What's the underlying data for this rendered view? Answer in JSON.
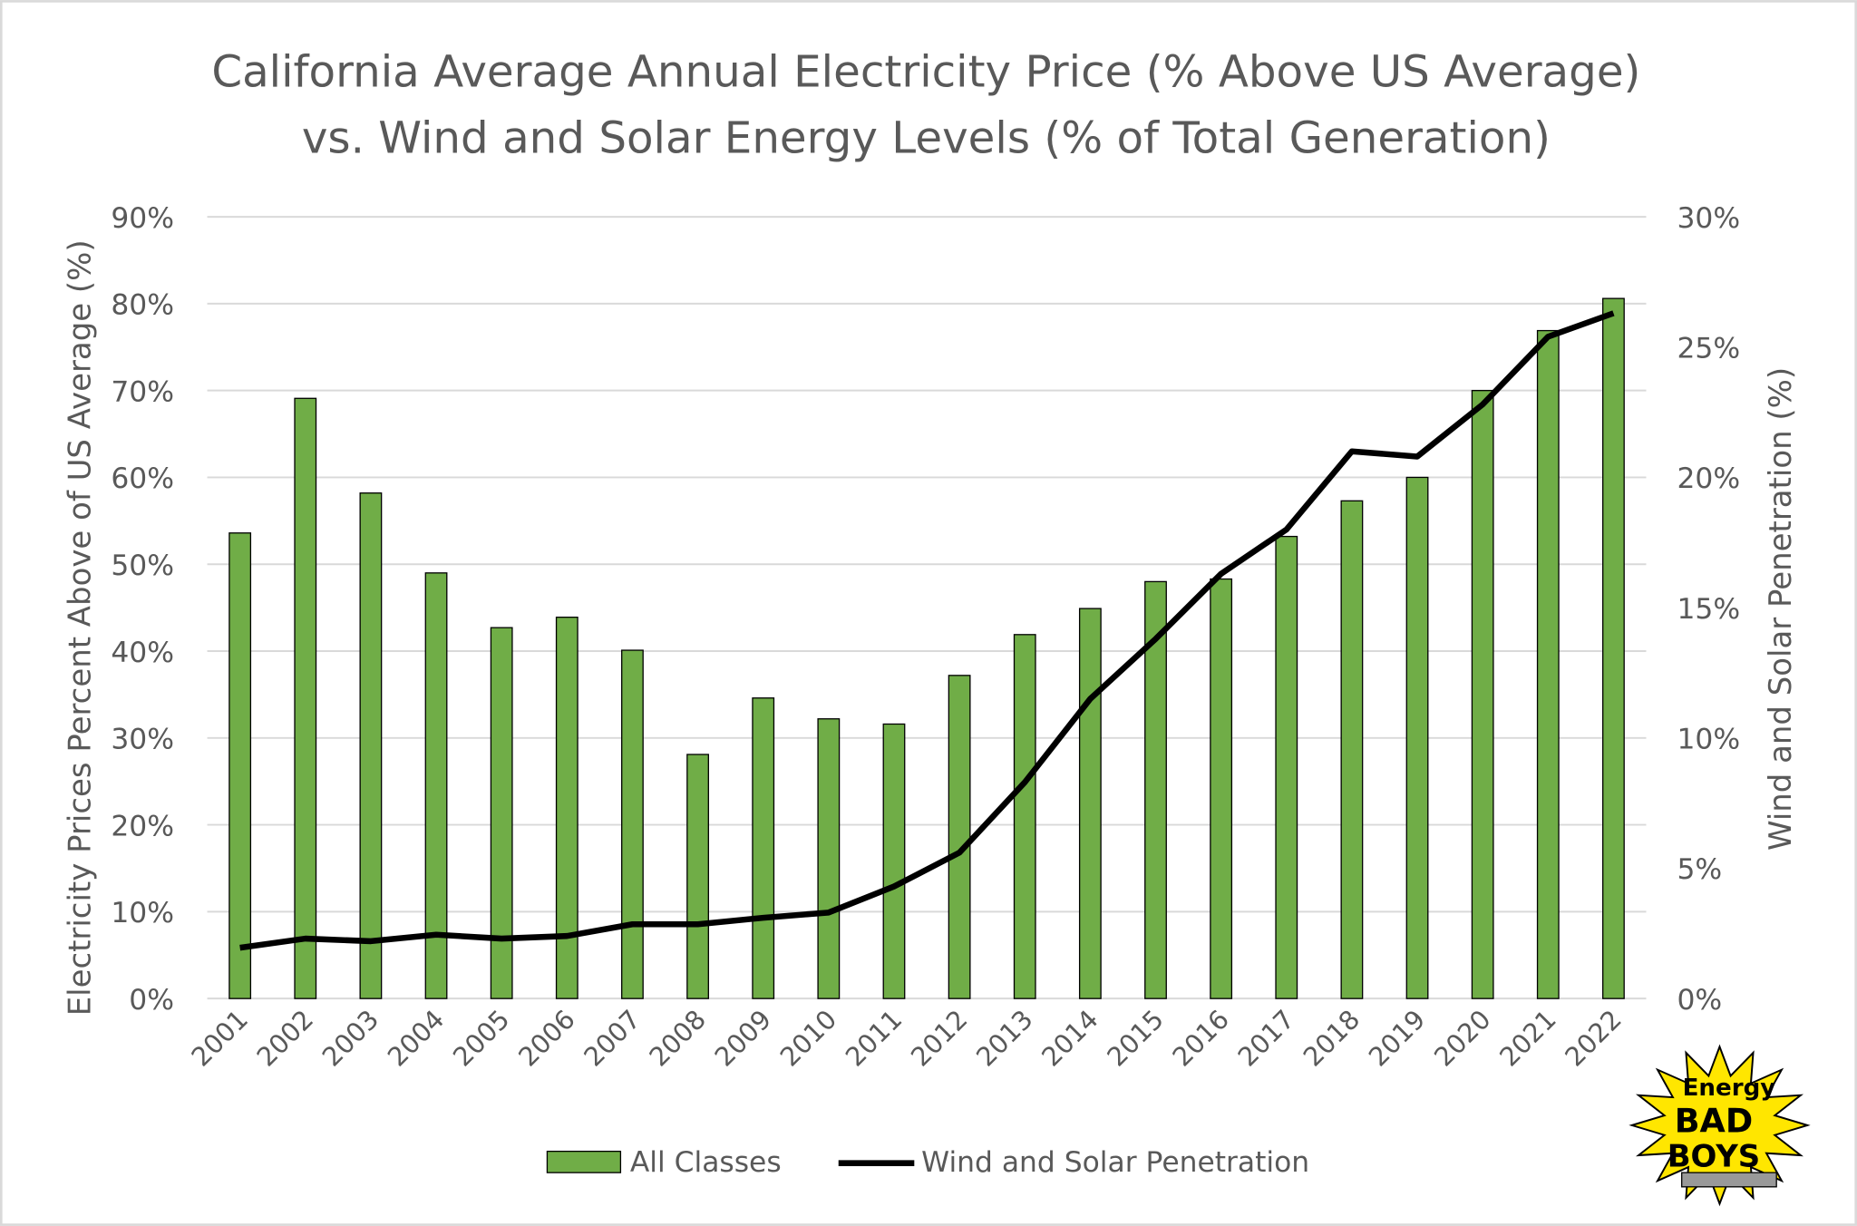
{
  "chart_data": {
    "type": "bar+line",
    "title_line1": "California Average Annual Electricity Price (% Above US Average)",
    "title_line2": "vs. Wind and Solar Energy Levels (% of Total Generation)",
    "ylabel": "Electricity Prices Percent Above of US Average (%)",
    "y2label": "Wind and Solar Penetration (%)",
    "ylim": [
      0,
      90
    ],
    "y2lim": [
      0,
      30
    ],
    "yticks": [
      "0%",
      "10%",
      "20%",
      "30%",
      "40%",
      "50%",
      "60%",
      "70%",
      "80%",
      "90%"
    ],
    "y2ticks": [
      "0%",
      "5%",
      "10%",
      "15%",
      "20%",
      "25%",
      "30%"
    ],
    "categories": [
      "2001",
      "2002",
      "2003",
      "2004",
      "2005",
      "2006",
      "2007",
      "2008",
      "2009",
      "2010",
      "2011",
      "2012",
      "2013",
      "2014",
      "2015",
      "2016",
      "2017",
      "2018",
      "2019",
      "2020",
      "2021",
      "2022"
    ],
    "grid": true,
    "legend_position": "bottom",
    "series": [
      {
        "name": "All Classes",
        "type": "bar",
        "axis": "left",
        "color": "#70AD47",
        "values": [
          53.6,
          69.1,
          58.2,
          49.0,
          42.7,
          43.9,
          40.1,
          28.1,
          34.6,
          32.2,
          31.6,
          37.2,
          41.9,
          44.9,
          48.0,
          48.3,
          53.2,
          57.3,
          60.0,
          70.0,
          76.9,
          80.6
        ]
      },
      {
        "name": "Wind and Solar Penetration",
        "type": "line",
        "axis": "right",
        "color": "#000000",
        "values": [
          1.95,
          2.3,
          2.2,
          2.45,
          2.3,
          2.4,
          2.85,
          2.85,
          3.1,
          3.3,
          4.3,
          5.6,
          8.3,
          11.5,
          13.8,
          16.3,
          18.0,
          21.0,
          20.8,
          22.8,
          25.4,
          26.3
        ]
      }
    ]
  },
  "logo": {
    "text_top": "Energy",
    "text_mid": "BAD",
    "text_bottom": "BOYS"
  }
}
